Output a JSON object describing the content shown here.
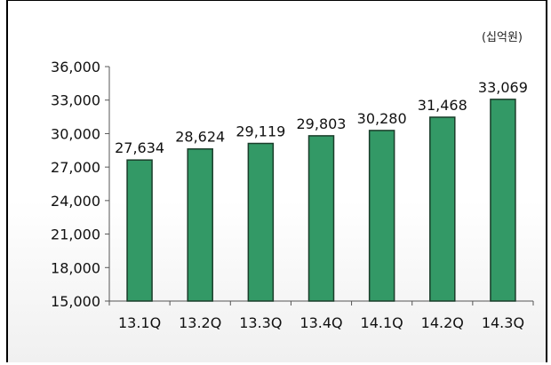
{
  "chart_data": {
    "type": "bar",
    "unit": "(십억원)",
    "categories": [
      "13.1Q",
      "13.2Q",
      "13.3Q",
      "13.4Q",
      "14.1Q",
      "14.2Q",
      "14.3Q"
    ],
    "values": [
      27634,
      28624,
      29119,
      29803,
      30280,
      31468,
      33069
    ],
    "value_labels": [
      "27,634",
      "28,624",
      "29,119",
      "29,803",
      "30,280",
      "31,468",
      "33,069"
    ],
    "yticks": [
      15000,
      18000,
      21000,
      24000,
      27000,
      30000,
      33000,
      36000
    ],
    "ytick_labels": [
      "15,000",
      "18,000",
      "21,000",
      "24,000",
      "27,000",
      "30,000",
      "33,000",
      "36,000"
    ],
    "ylim": [
      15000,
      36000
    ],
    "bar_color": "#339966",
    "bar_border_color": "#1a3d2a",
    "grid": false,
    "legend": "none"
  }
}
